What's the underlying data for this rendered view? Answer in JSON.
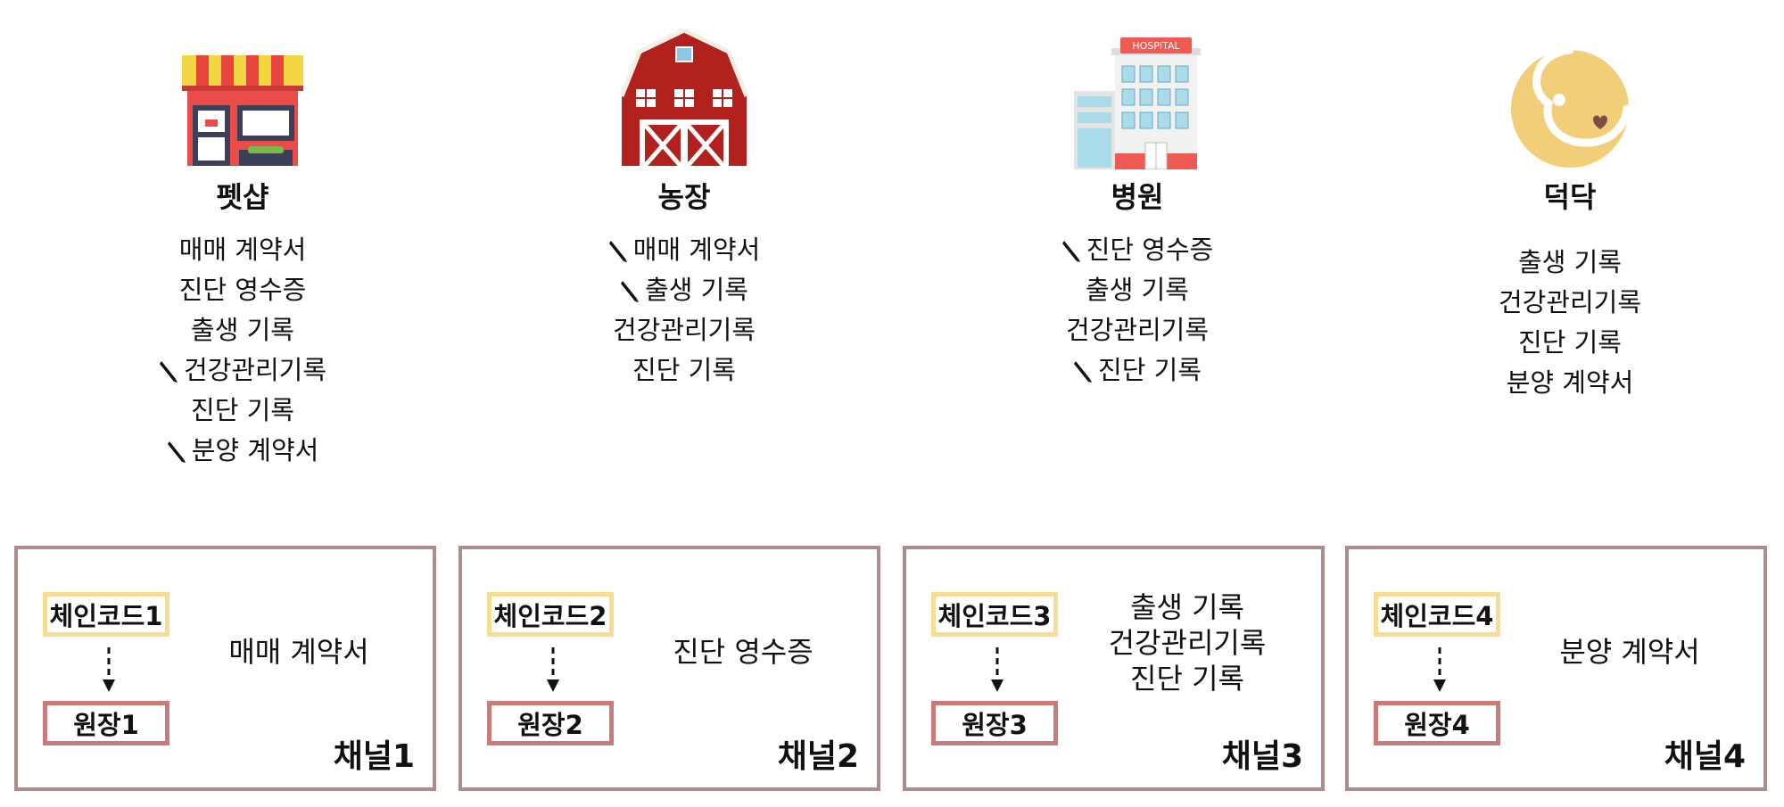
{
  "columns": [
    {
      "title": "펫샵",
      "icon": "pet-shop-icon",
      "items": [
        {
          "text": "매매 계약서",
          "edited": false
        },
        {
          "text": "진단 영수증",
          "edited": false
        },
        {
          "text": "출생 기록",
          "edited": false
        },
        {
          "text": "건강관리기록",
          "edited": true
        },
        {
          "text": "진단 기록",
          "edited": false
        },
        {
          "text": "분양 계약서",
          "edited": true
        }
      ]
    },
    {
      "title": "농장",
      "icon": "barn-icon",
      "items": [
        {
          "text": "매매 계약서",
          "edited": true
        },
        {
          "text": "출생 기록",
          "edited": true
        },
        {
          "text": "건강관리기록",
          "edited": false
        },
        {
          "text": "진단 기록",
          "edited": false
        }
      ]
    },
    {
      "title": "병원",
      "icon": "hospital-icon",
      "sign": "HOSPITAL",
      "items": [
        {
          "text": "진단 영수증",
          "edited": true
        },
        {
          "text": "출생 기록",
          "edited": false
        },
        {
          "text": "건강관리기록",
          "edited": false
        },
        {
          "text": "진단 기록",
          "edited": true
        }
      ]
    },
    {
      "title": "덕닥",
      "icon": "dog-logo-icon",
      "items": [
        {
          "text": "출생 기록",
          "edited": false
        },
        {
          "text": "건강관리기록",
          "edited": false
        },
        {
          "text": "진단 기록",
          "edited": false
        },
        {
          "text": "분양 계약서",
          "edited": false
        }
      ]
    }
  ],
  "channels": [
    {
      "chaincode": "체인코드1",
      "farm": "원장1",
      "docs": [
        "매매 계약서"
      ],
      "name": "채널1"
    },
    {
      "chaincode": "체인코드2",
      "farm": "원장2",
      "docs": [
        "진단 영수증"
      ],
      "name": "채널2"
    },
    {
      "chaincode": "체인코드3",
      "farm": "원장3",
      "docs": [
        "출생 기록",
        "건강관리기록",
        "진단 기록"
      ],
      "name": "채널3"
    },
    {
      "chaincode": "체인코드4",
      "farm": "원장4",
      "docs": [
        "분양 계약서"
      ],
      "name": "채널4"
    }
  ],
  "colors": {
    "channel_border": "#ad8c8c",
    "chaincode_border": "#f7dd8f",
    "ledger_border": "#c97a7a"
  }
}
